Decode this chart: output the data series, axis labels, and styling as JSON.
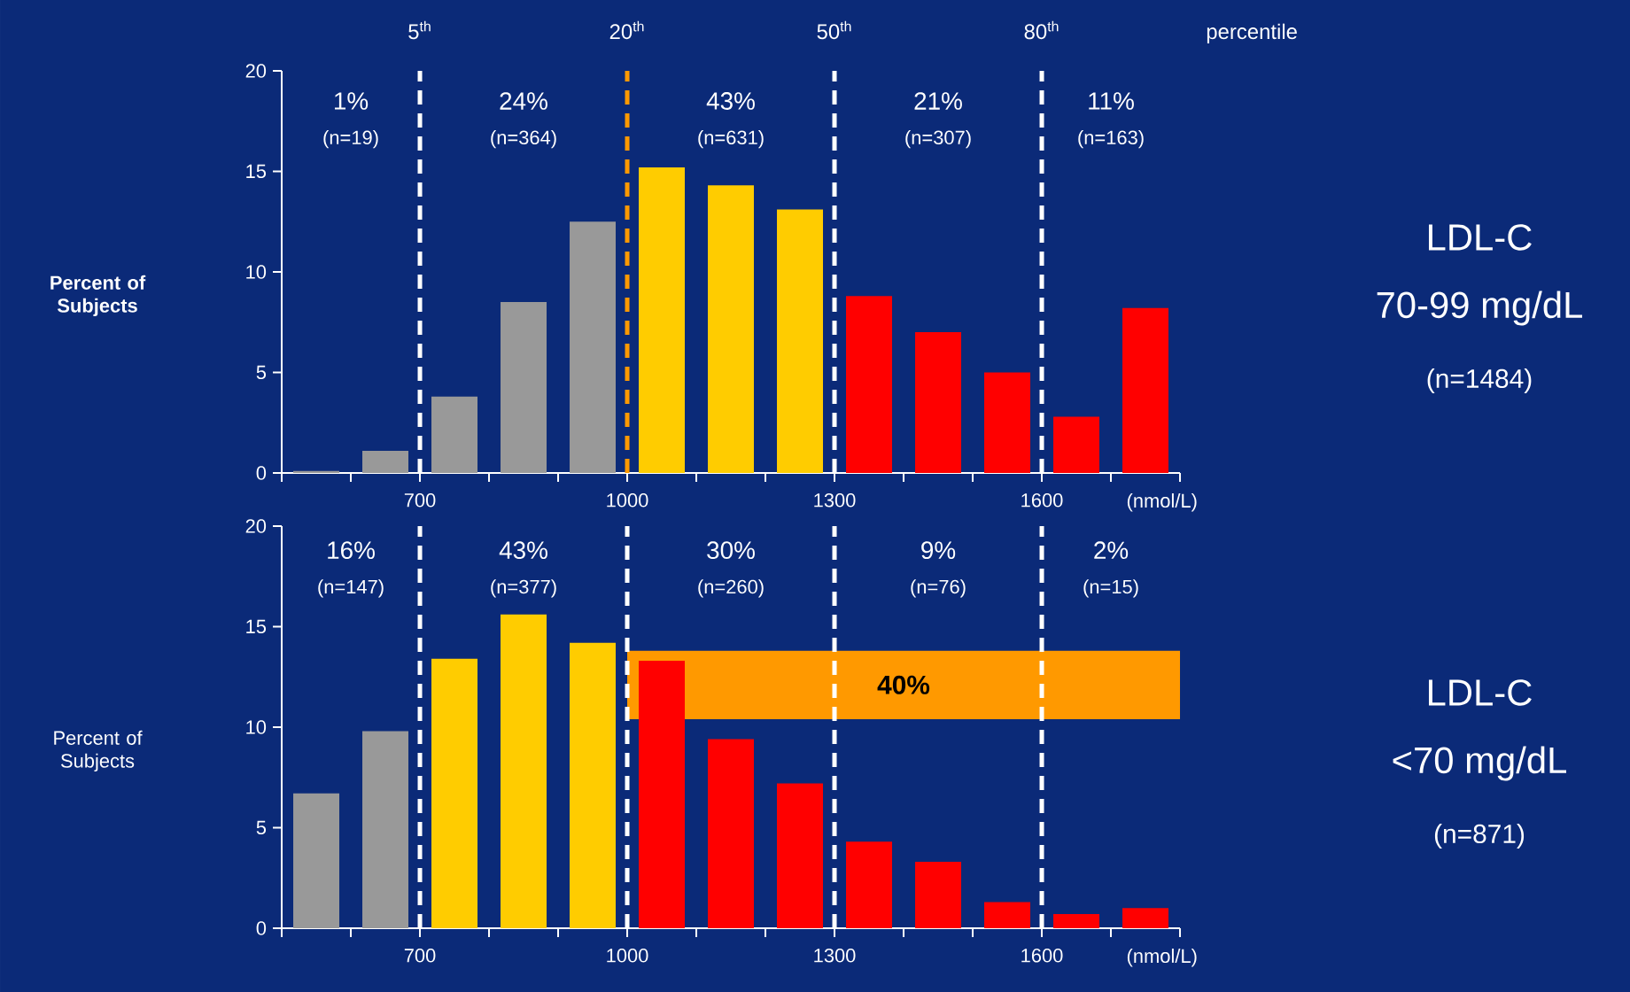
{
  "chart_data": [
    {
      "type": "bar",
      "ylabel": "Percent of Subjects",
      "xlabel": "(nmol/L)",
      "x": [
        550,
        650,
        750,
        850,
        950,
        1050,
        1150,
        1250,
        1350,
        1450,
        1550,
        1650,
        1750
      ],
      "values": [
        0.1,
        1.1,
        3.8,
        8.5,
        12.5,
        15.2,
        14.3,
        13.1,
        8.8,
        7.0,
        5.0,
        2.8,
        8.2
      ],
      "colors": [
        "#999999",
        "#999999",
        "#999999",
        "#999999",
        "#999999",
        "#ffcc00",
        "#ffcc00",
        "#ffcc00",
        "#ff0000",
        "#ff0000",
        "#ff0000",
        "#ff0000",
        "#ff0000"
      ],
      "xlim": [
        500,
        1800
      ],
      "ylim": [
        0,
        20
      ],
      "yticks": [
        0,
        5,
        10,
        15,
        20
      ],
      "xticks": [
        {
          "value": 500,
          "label": null
        },
        {
          "value": 600,
          "label": null
        },
        700,
        {
          "value": 800,
          "label": null
        },
        {
          "value": 900,
          "label": null
        },
        1000,
        {
          "value": 1100,
          "label": null
        },
        {
          "value": 1200,
          "label": null
        },
        1300,
        {
          "value": 1400,
          "label": null
        },
        {
          "value": 1500,
          "label": null
        },
        1600,
        {
          "value": 1700,
          "label": null
        },
        {
          "value": 1800,
          "label": null
        }
      ],
      "ref_lines": [
        {
          "axis": "x",
          "value": 700,
          "label": "5$^{th}$",
          "color": "#ffffff",
          "line_style": "dashed"
        },
        {
          "axis": "x",
          "value": 1000,
          "label": "20$^{th}$",
          "color": "#ff9900",
          "line_style": "dashed"
        },
        {
          "axis": "x",
          "value": 1300,
          "label": "50$^{th}$",
          "color": "#ffffff",
          "line_style": "dashed"
        },
        {
          "axis": "x",
          "value": 1600,
          "label": "80$^{th}$",
          "color": "#ffffff",
          "line_style": "dashed"
        }
      ],
      "annotations": [
        "1%",
        "(n=19)",
        "24%",
        "(n=364)",
        "43%",
        "(n=631)",
        "21%",
        "(n=307)",
        "11%",
        "(n=163)",
        "percentile",
        "LDL-C",
        "70-99 mg/dL",
        "(n=1484)"
      ]
    },
    {
      "type": "bar",
      "ylabel": "Percent of Subjects",
      "xlabel": "(nmol/L)",
      "x": [
        550,
        650,
        750,
        850,
        950,
        1050,
        1150,
        1250,
        1350,
        1450,
        1550,
        1650,
        1750
      ],
      "values": [
        6.7,
        9.8,
        13.4,
        15.6,
        14.2,
        13.3,
        9.4,
        7.2,
        4.3,
        3.3,
        1.3,
        0.7,
        1.0
      ],
      "colors": [
        "#999999",
        "#999999",
        "#ffcc00",
        "#ffcc00",
        "#ffcc00",
        "#ff0000",
        "#ff0000",
        "#ff0000",
        "#ff0000",
        "#ff0000",
        "#ff0000",
        "#ff0000",
        "#ff0000"
      ],
      "xlim": [
        500,
        1800
      ],
      "ylim": [
        0,
        20
      ],
      "yticks": [
        0,
        5,
        10,
        15,
        20
      ],
      "xticks": [
        {
          "value": 500,
          "label": null
        },
        {
          "value": 600,
          "label": null
        },
        700,
        {
          "value": 800,
          "label": null
        },
        {
          "value": 900,
          "label": null
        },
        1000,
        {
          "value": 1100,
          "label": null
        },
        {
          "value": 1200,
          "label": null
        },
        1300,
        {
          "value": 1400,
          "label": null
        },
        {
          "value": 1500,
          "label": null
        },
        1600,
        {
          "value": 1700,
          "label": null
        },
        {
          "value": 1800,
          "label": null
        }
      ],
      "ref_lines": [
        {
          "axis": "x",
          "value": 700,
          "color": "#ffffff",
          "line_style": "dashed"
        },
        {
          "axis": "x",
          "value": 1000,
          "color": "#ffffff",
          "line_style": "dashed"
        },
        {
          "axis": "x",
          "value": 1300,
          "color": "#ffffff",
          "line_style": "dashed"
        },
        {
          "axis": "x",
          "value": 1600,
          "color": "#ffffff",
          "line_style": "dashed"
        }
      ],
      "bands": [
        {
          "axis": "x",
          "from": 1000,
          "to": 1800,
          "label": "40%",
          "color": "#ff9900"
        }
      ],
      "annotations": [
        "16%",
        "(n=147)",
        "43%",
        "(n=377)",
        "30%",
        "(n=260)",
        "9%",
        "(n=76)",
        "2%",
        "(n=15)",
        "LDL-C",
        "<70 mg/dL",
        "(n=871)"
      ]
    }
  ]
}
